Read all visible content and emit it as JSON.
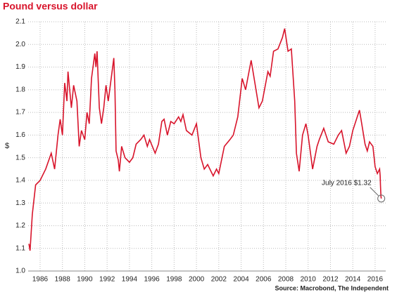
{
  "chart_data": {
    "type": "line",
    "title": "Pound versus dollar",
    "y_label": "$",
    "source": "Source: Macrobond, The Independent",
    "annotation": {
      "text": "July 2016 $1.32",
      "point_index": 113
    },
    "color": "#d8142b",
    "grid": true,
    "xlim": [
      1984.93,
      2016.95
    ],
    "ylim": [
      1.0,
      2.1
    ],
    "xticks": [
      1986,
      1988,
      1990,
      1992,
      1994,
      1996,
      1998,
      2000,
      2002,
      2004,
      2006,
      2008,
      2010,
      2012,
      2014,
      2016
    ],
    "yticks": [
      {
        "value": 1.0,
        "label": "1.0"
      },
      1.1,
      1.2,
      1.3,
      1.4,
      1.5,
      1.6,
      1.7,
      1.8,
      1.9,
      {
        "value": 2.0,
        "label": "2.0"
      },
      2.1
    ],
    "x": [
      1985.0,
      1985.1,
      1985.3,
      1985.6,
      1986.0,
      1986.5,
      1987.0,
      1987.3,
      1987.6,
      1987.8,
      1988.0,
      1988.2,
      1988.4,
      1988.5,
      1988.8,
      1989.0,
      1989.3,
      1989.5,
      1989.7,
      1990.0,
      1990.2,
      1990.4,
      1990.6,
      1990.9,
      1991.0,
      1991.1,
      1991.3,
      1991.5,
      1991.7,
      1991.9,
      1992.1,
      1992.6,
      1992.7,
      1992.8,
      1993.0,
      1993.1,
      1993.3,
      1993.6,
      1994.0,
      1994.3,
      1994.6,
      1995.0,
      1995.3,
      1995.6,
      1995.8,
      1996.3,
      1996.6,
      1996.9,
      1997.1,
      1997.4,
      1997.7,
      1998.0,
      1998.4,
      1998.6,
      1998.8,
      1999.1,
      1999.6,
      2000.0,
      2000.4,
      2000.7,
      2001.0,
      2001.5,
      2001.8,
      2002.0,
      2002.5,
      2003.0,
      2003.3,
      2003.7,
      2004.1,
      2004.4,
      2004.9,
      2005.0,
      2005.6,
      2005.9,
      2006.4,
      2006.6,
      2006.9,
      2007.3,
      2007.7,
      2007.9,
      2008.2,
      2008.5,
      2008.8,
      2008.95,
      2009.2,
      2009.5,
      2009.8,
      2010.0,
      2010.4,
      2010.8,
      2011.0,
      2011.4,
      2011.8,
      2012.3,
      2012.7,
      2013.0,
      2013.4,
      2013.7,
      2014.0,
      2014.4,
      2014.6,
      2014.8,
      2015.1,
      2015.3,
      2015.5,
      2015.8,
      2016.0,
      2016.2,
      2016.4,
      2016.45,
      2016.48,
      2016.5,
      2016.52,
      2016.55
    ],
    "values": [
      1.12,
      1.09,
      1.25,
      1.38,
      1.4,
      1.45,
      1.52,
      1.45,
      1.6,
      1.67,
      1.6,
      1.83,
      1.75,
      1.88,
      1.72,
      1.82,
      1.75,
      1.55,
      1.62,
      1.58,
      1.7,
      1.65,
      1.85,
      1.96,
      1.9,
      1.97,
      1.72,
      1.65,
      1.72,
      1.82,
      1.75,
      1.94,
      1.8,
      1.53,
      1.49,
      1.44,
      1.55,
      1.5,
      1.48,
      1.5,
      1.56,
      1.58,
      1.6,
      1.55,
      1.58,
      1.52,
      1.56,
      1.66,
      1.67,
      1.6,
      1.66,
      1.65,
      1.68,
      1.66,
      1.69,
      1.62,
      1.6,
      1.65,
      1.5,
      1.45,
      1.47,
      1.42,
      1.45,
      1.43,
      1.55,
      1.58,
      1.6,
      1.68,
      1.85,
      1.8,
      1.93,
      1.9,
      1.72,
      1.75,
      1.88,
      1.86,
      1.97,
      1.98,
      2.03,
      2.07,
      1.97,
      1.98,
      1.75,
      1.52,
      1.44,
      1.6,
      1.65,
      1.6,
      1.45,
      1.55,
      1.58,
      1.63,
      1.57,
      1.56,
      1.6,
      1.62,
      1.52,
      1.55,
      1.62,
      1.68,
      1.71,
      1.65,
      1.56,
      1.53,
      1.57,
      1.55,
      1.46,
      1.43,
      1.45,
      1.42,
      1.38,
      1.35,
      1.33,
      1.32
    ]
  }
}
